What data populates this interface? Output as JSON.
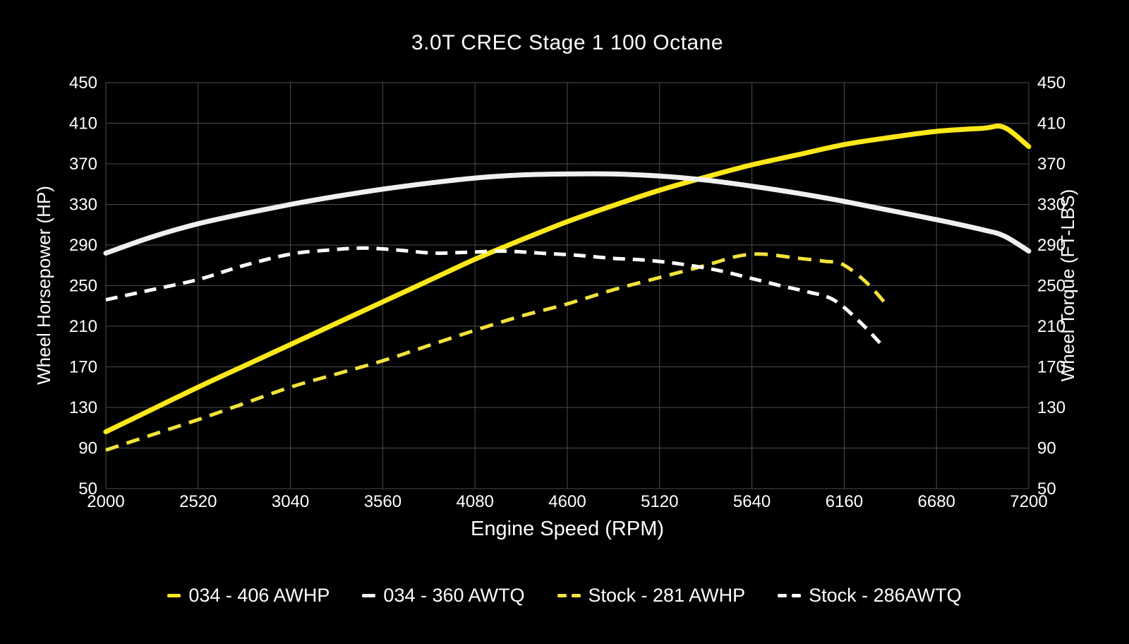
{
  "chart_data": {
    "type": "line",
    "title": "3.0T CREC Stage 1 100 Octane",
    "xlabel": "Engine Speed (RPM)",
    "ylabel_left": "Wheel Horsepower (HP)",
    "ylabel_right": "Wheel Torque (FT-LBS)",
    "x_range": [
      2000,
      7200
    ],
    "y_range": [
      50,
      450
    ],
    "x_ticks": [
      2000,
      2520,
      3040,
      3560,
      4080,
      4600,
      5120,
      5640,
      6160,
      6680,
      7200
    ],
    "y_ticks": [
      50,
      90,
      130,
      170,
      210,
      250,
      290,
      330,
      370,
      410,
      450
    ],
    "grid": true,
    "legend_position": "bottom",
    "background_color": "#000000",
    "grid_color": "#4c4c4c",
    "text_color": "#ffffff",
    "series": [
      {
        "name": "034 - 406 AWHP",
        "axis": "left",
        "style": "solid",
        "color": "#ffe81a",
        "width": 7,
        "points": [
          [
            2000,
            106
          ],
          [
            2260,
            128
          ],
          [
            2520,
            150
          ],
          [
            2780,
            171
          ],
          [
            3040,
            192
          ],
          [
            3300,
            213
          ],
          [
            3560,
            234
          ],
          [
            3820,
            255
          ],
          [
            4080,
            276
          ],
          [
            4340,
            295
          ],
          [
            4600,
            313
          ],
          [
            4860,
            329
          ],
          [
            5120,
            344
          ],
          [
            5380,
            357
          ],
          [
            5640,
            369
          ],
          [
            5900,
            379
          ],
          [
            6160,
            389
          ],
          [
            6420,
            396
          ],
          [
            6680,
            402
          ],
          [
            6940,
            405
          ],
          [
            7060,
            406
          ],
          [
            7200,
            387
          ]
        ]
      },
      {
        "name": "034 - 360 AWTQ",
        "axis": "right",
        "style": "solid",
        "color": "#f0f0f0",
        "width": 7,
        "points": [
          [
            2000,
            282
          ],
          [
            2260,
            298
          ],
          [
            2520,
            311
          ],
          [
            2780,
            321
          ],
          [
            3040,
            330
          ],
          [
            3300,
            338
          ],
          [
            3560,
            345
          ],
          [
            3820,
            351
          ],
          [
            4080,
            356
          ],
          [
            4340,
            359
          ],
          [
            4600,
            360
          ],
          [
            4860,
            360
          ],
          [
            5120,
            358
          ],
          [
            5380,
            354
          ],
          [
            5640,
            348
          ],
          [
            5900,
            341
          ],
          [
            6160,
            333
          ],
          [
            6420,
            324
          ],
          [
            6680,
            315
          ],
          [
            6940,
            305
          ],
          [
            7060,
            299
          ],
          [
            7200,
            284
          ]
        ]
      },
      {
        "name": "Stock - 281 AWHP",
        "axis": "left",
        "style": "dashed",
        "color": "#f2e33c",
        "width": 5,
        "dash": [
          19,
          12
        ],
        "points": [
          [
            2000,
            88
          ],
          [
            2260,
            103
          ],
          [
            2520,
            118
          ],
          [
            2780,
            134
          ],
          [
            3040,
            150
          ],
          [
            3300,
            163
          ],
          [
            3560,
            176
          ],
          [
            3820,
            191
          ],
          [
            4080,
            206
          ],
          [
            4340,
            220
          ],
          [
            4600,
            232
          ],
          [
            4860,
            246
          ],
          [
            5120,
            258
          ],
          [
            5380,
            270
          ],
          [
            5560,
            279
          ],
          [
            5700,
            281
          ],
          [
            5900,
            277
          ],
          [
            6050,
            274
          ],
          [
            6150,
            271
          ],
          [
            6280,
            254
          ],
          [
            6400,
            231
          ]
        ]
      },
      {
        "name": "Stock - 286AWTQ",
        "axis": "right",
        "style": "dashed",
        "color": "#ffffff",
        "width": 5,
        "dash": [
          17,
          11
        ],
        "points": [
          [
            2000,
            236
          ],
          [
            2260,
            246
          ],
          [
            2520,
            256
          ],
          [
            2780,
            270
          ],
          [
            3040,
            281
          ],
          [
            3250,
            285
          ],
          [
            3450,
            287
          ],
          [
            3650,
            285
          ],
          [
            3850,
            282
          ],
          [
            4050,
            283
          ],
          [
            4250,
            284
          ],
          [
            4450,
            282
          ],
          [
            4650,
            280
          ],
          [
            4850,
            277
          ],
          [
            5050,
            275
          ],
          [
            5250,
            271
          ],
          [
            5450,
            265
          ],
          [
            5640,
            257
          ],
          [
            5800,
            250
          ],
          [
            5950,
            244
          ],
          [
            6100,
            236
          ],
          [
            6250,
            214
          ],
          [
            6390,
            188
          ]
        ]
      }
    ]
  }
}
